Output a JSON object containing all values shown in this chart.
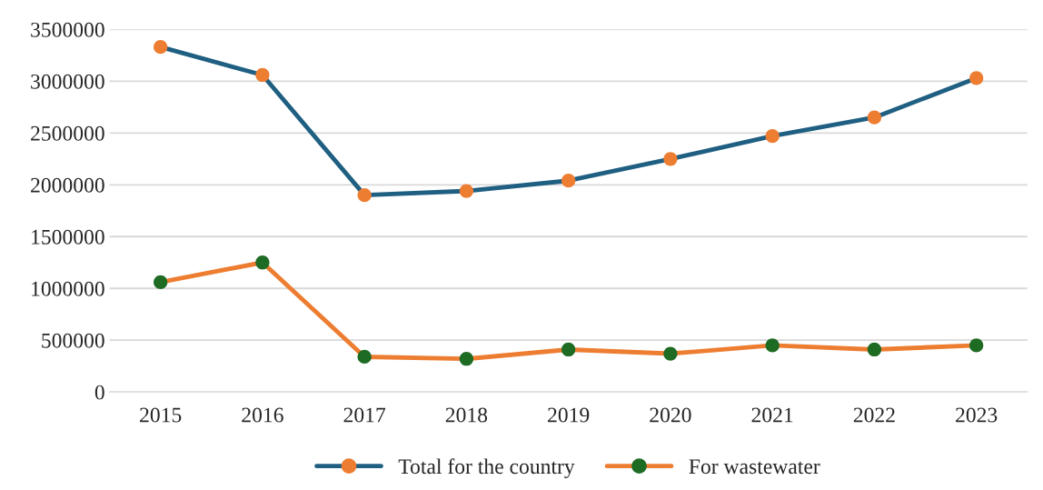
{
  "chart_data": {
    "type": "line",
    "categories": [
      "2015",
      "2016",
      "2017",
      "2018",
      "2019",
      "2020",
      "2021",
      "2022",
      "2023"
    ],
    "series": [
      {
        "name": "Total for the country",
        "color": "#1f5f82",
        "colors": [
          "#ed7d31",
          "#ed7d31",
          "#ed7d31",
          "#ed7d31",
          "#ed7d31",
          "#ed7d31",
          "#ed7d31",
          "#ed7d31",
          "#ed7d31"
        ],
        "values": [
          3330000,
          3060000,
          1900000,
          1940000,
          2040000,
          2250000,
          2470000,
          2650000,
          3030000
        ]
      },
      {
        "name": "For wastewater",
        "color": "#ed7d31",
        "colors": [
          "#1e6b24",
          "#1e6b24",
          "#1e6b24",
          "#1e6b24",
          "#1e6b24",
          "#1e6b24",
          "#1e6b24",
          "#1e6b24",
          "#1e6b24"
        ],
        "values": [
          1060000,
          1250000,
          340000,
          320000,
          410000,
          370000,
          450000,
          410000,
          450000
        ]
      }
    ],
    "ylim": [
      0,
      3500000
    ],
    "yticks": [
      0,
      500000,
      1000000,
      1500000,
      2000000,
      2500000,
      3000000,
      3500000
    ],
    "grid": "y",
    "legend": "bottom",
    "marker": "circle",
    "line_style": "solid"
  }
}
